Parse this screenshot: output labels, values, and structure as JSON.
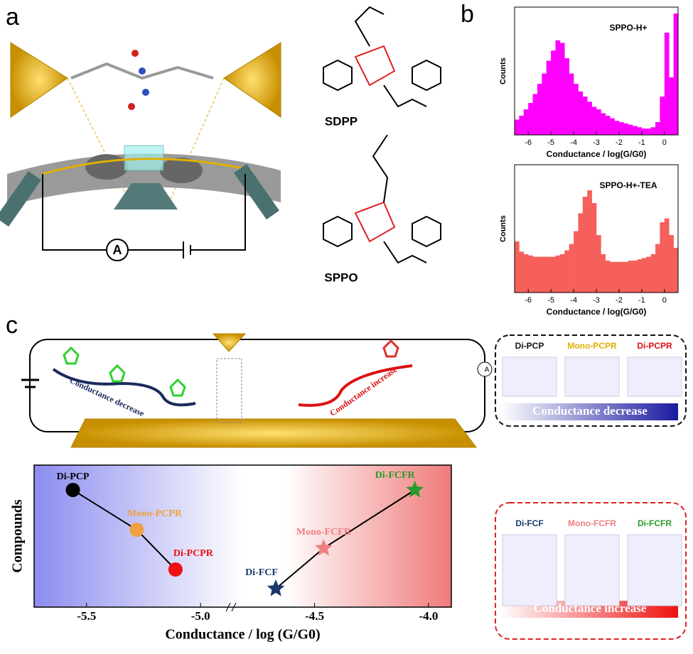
{
  "panel_labels": [
    "a",
    "b",
    "c"
  ],
  "molecules": [
    "SDPP",
    "SPPO"
  ],
  "ammeter_a": "A",
  "circuit_c": {
    "left_text": "Conductance decrease",
    "right_text": "Conductance increase",
    "ammeter": "A"
  },
  "boxes": [
    {
      "names": [
        "Di-PCP",
        "Mono-PCPR",
        "Di-PCPR"
      ],
      "bar": "Conductance decrease"
    },
    {
      "names": [
        "Di-FCF",
        "Mono-FCFR",
        "Di-FCFR"
      ],
      "bar": "Conductance increase"
    }
  ],
  "chart_data": [
    {
      "type": "histogram",
      "title": "SPPO-H+",
      "ylabel": "Counts",
      "xlabel": "Conductance / log(G/G0)",
      "color": "#ff00ff",
      "bins": [
        -6.6,
        -6.4,
        -6.2,
        -6.0,
        -5.8,
        -5.6,
        -5.4,
        -5.2,
        -5.0,
        -4.8,
        -4.6,
        -4.4,
        -4.2,
        -4.0,
        -3.8,
        -3.6,
        -3.4,
        -3.2,
        -3.0,
        -2.8,
        -2.6,
        -2.4,
        -2.2,
        -2.0,
        -1.8,
        -1.6,
        -1.4,
        -1.2,
        -1.0,
        -0.8,
        -0.6,
        -0.4,
        -0.2,
        0,
        0.2,
        0.4,
        0.6
      ],
      "values": [
        12,
        15,
        20,
        25,
        32,
        40,
        48,
        58,
        66,
        74,
        72,
        60,
        48,
        40,
        34,
        30,
        26,
        22,
        20,
        17,
        15,
        13,
        11,
        10,
        9,
        8,
        7,
        6,
        5,
        5,
        6,
        10,
        30,
        80,
        45,
        95
      ],
      "xlim": [
        -6.6,
        0.6
      ],
      "xticks": [
        -6,
        -5,
        -4,
        -3,
        -2,
        -1,
        0
      ],
      "ylim": [
        0,
        100
      ]
    },
    {
      "type": "histogram",
      "title": "SPPO-H+-TEA",
      "ylabel": "Counts",
      "xlabel": "Conductance / log(G/G0)",
      "color": "#f5605a",
      "bins": [
        -6.6,
        -6.4,
        -6.2,
        -6.0,
        -5.8,
        -5.6,
        -5.4,
        -5.2,
        -5.0,
        -4.8,
        -4.6,
        -4.4,
        -4.2,
        -4.0,
        -3.8,
        -3.6,
        -3.4,
        -3.2,
        -3.0,
        -2.8,
        -2.6,
        -2.4,
        -2.2,
        -2.0,
        -1.8,
        -1.6,
        -1.4,
        -1.2,
        -1.0,
        -0.8,
        -0.6,
        -0.4,
        -0.2,
        0,
        0.2,
        0.4,
        0.6
      ],
      "values": [
        40,
        32,
        30,
        29,
        28,
        28,
        28,
        28,
        28,
        29,
        30,
        33,
        38,
        48,
        62,
        75,
        80,
        70,
        45,
        30,
        25,
        24,
        24,
        24,
        24,
        25,
        25,
        26,
        27,
        28,
        30,
        38,
        55,
        58,
        45,
        35
      ],
      "xlim": [
        -6.6,
        0.6
      ],
      "xticks": [
        -6,
        -5,
        -4,
        -3,
        -2,
        -1,
        0
      ],
      "ylim": [
        0,
        100
      ]
    },
    {
      "type": "scatter",
      "xlabel": "Conductance / log (G/G0)",
      "ylabel": "Compounds",
      "xlim": [
        -5.73,
        -3.9
      ],
      "xticks": [
        -5.5,
        {
          "value": -5,
          "label": "-5.0"
        },
        -4.5,
        {
          "value": -4,
          "label": "-4.0"
        }
      ],
      "ylim": [
        0,
        1
      ],
      "series": [
        {
          "marker": "circle",
          "labels": [
            "Di-PCP",
            "Mono-PCPR",
            "Di-PCPR"
          ],
          "x": [
            -5.56,
            -5.28,
            -5.11
          ],
          "values": [
            0.825,
            0.545,
            0.265
          ],
          "colors": [
            "#000000",
            "#f0a040",
            "#ee1111"
          ]
        },
        {
          "marker": "star",
          "labels": [
            "Di-FCF",
            "Mono-FCFR",
            "Di-FCFR"
          ],
          "x": [
            -4.67,
            -4.46,
            -4.06
          ],
          "values": [
            0.13,
            0.415,
            0.825
          ],
          "colors": [
            "#1a3a6a",
            "#f08080",
            "#2a9a2a"
          ]
        }
      ]
    }
  ]
}
